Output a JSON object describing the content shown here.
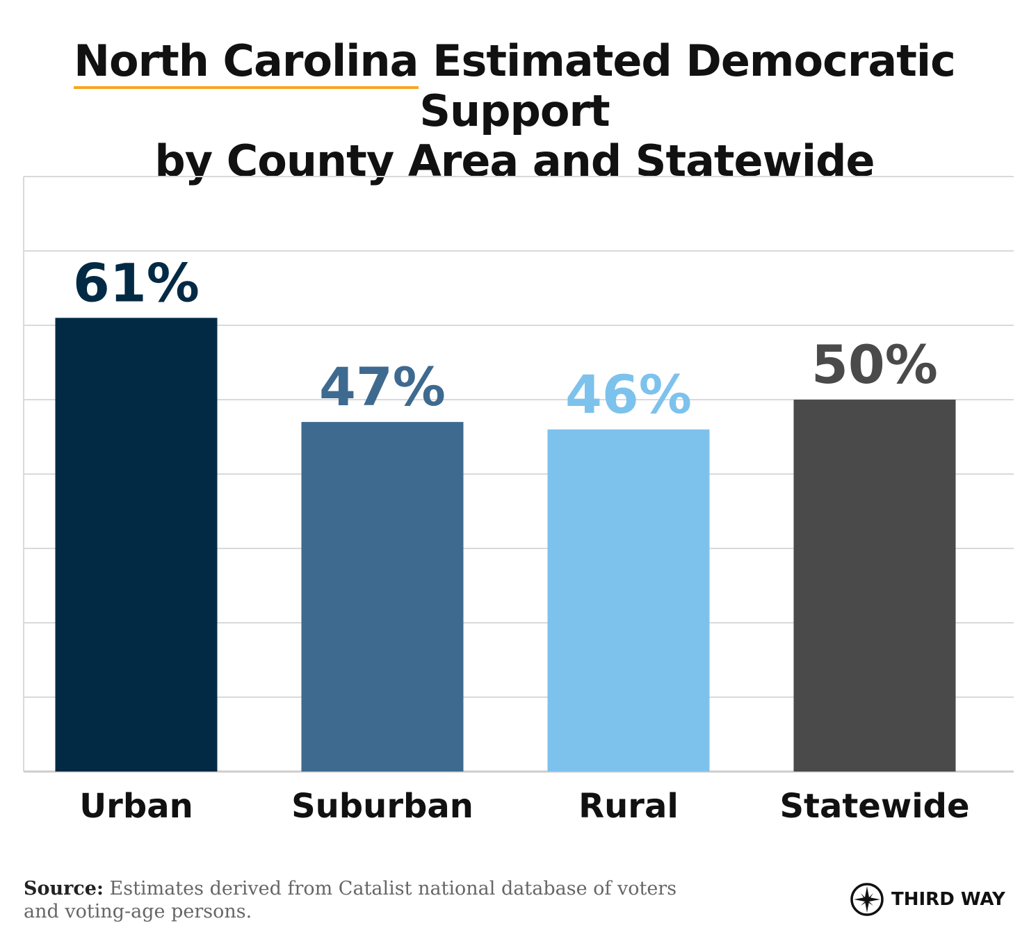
{
  "title": {
    "highlight": "North Carolina",
    "line1_rest": " Estimated Democratic Support",
    "line2": "by County Area and Statewide"
  },
  "chart_data": {
    "type": "bar",
    "title": "North Carolina Estimated Democratic Support by County Area and Statewide",
    "categories": [
      "Urban",
      "Suburban",
      "Rural",
      "Statewide"
    ],
    "values": [
      61,
      47,
      46,
      50
    ],
    "data_labels": [
      "61%",
      "47%",
      "46%",
      "50%"
    ],
    "colors": [
      "#032a45",
      "#3e6a90",
      "#7dc2ec",
      "#4a4a4a"
    ],
    "xlabel": "",
    "ylabel": "",
    "ylim": [
      0,
      80
    ],
    "gridlines": true,
    "y_tick_labels_shown": false
  },
  "source": {
    "label": "Source:",
    "text": "Estimates derived from Catalist national database of voters and voting-age persons."
  },
  "logo": {
    "text": "THIRD WAY",
    "icon": "compass-star-icon"
  }
}
